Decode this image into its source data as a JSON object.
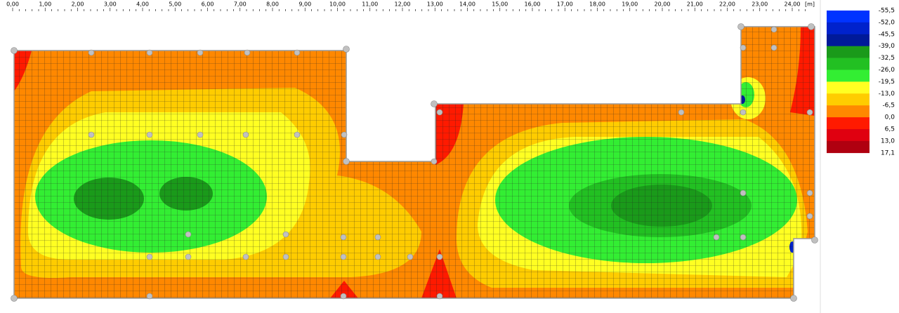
{
  "ruler": {
    "labels": [
      "0,00",
      "1,00",
      "2,00",
      "3,00",
      "4,00",
      "5,00",
      "6,00",
      "7,00",
      "8,00",
      "9,00",
      "10,00",
      "11,00",
      "12,00",
      "13,00",
      "14,00",
      "15,00",
      "16,00",
      "17,00",
      "18,00",
      "19,00",
      "20,00",
      "21,00",
      "22,00",
      "23,00",
      "24,00"
    ],
    "unit": "[m]"
  },
  "legend": {
    "labels": [
      "-55,5",
      "-52,0",
      "-45,5",
      "-39,0",
      "-32,5",
      "-26,0",
      "-19,5",
      "-13,0",
      "-6,5",
      "0,0",
      "6,5",
      "13,0",
      "17,1"
    ],
    "colors": [
      "#0033ff",
      "#0022cc",
      "#001a99",
      "#1a9a1a",
      "#22c022",
      "#33ee33",
      "#ffff22",
      "#ffcc00",
      "#ff8800",
      "#ff1a00",
      "#e00010",
      "#b00010"
    ]
  }
}
